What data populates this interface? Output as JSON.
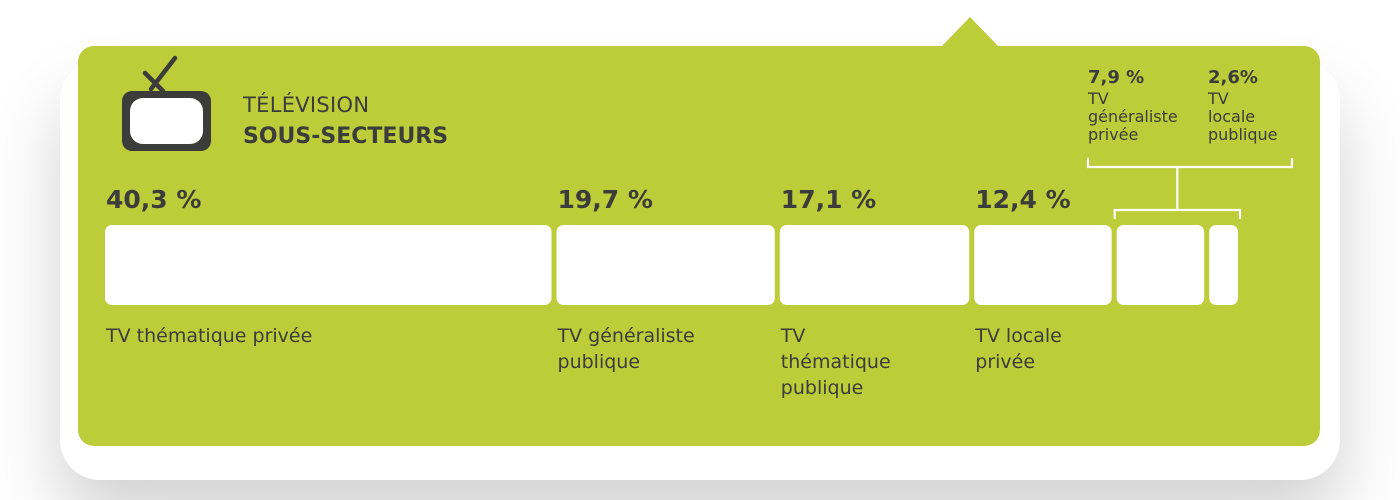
{
  "header": {
    "subtitle": "TÉLÉVISION",
    "title": "SOUS-SECTEURS"
  },
  "icon": "tv-icon",
  "colors": {
    "panel": "#bdcd3a",
    "bar": "#ffffff",
    "text": "#3c3c3b"
  },
  "chart_data": {
    "type": "bar",
    "orientation": "horizontal-stacked",
    "title": "",
    "xlabel": "",
    "ylabel": "",
    "categories": [
      "TV thématique privée",
      "TV généraliste publique",
      "TV thématique publique",
      "TV locale privée",
      "TV généraliste privée",
      "TV locale publique"
    ],
    "values": [
      40.3,
      19.7,
      17.1,
      12.4,
      7.9,
      2.6
    ],
    "value_labels": [
      "40,3 %",
      "19,7 %",
      "17,1 %",
      "12,4 %",
      "7,9 %",
      "2,6%"
    ],
    "category_lines": [
      [
        "TV thématique privée"
      ],
      [
        "TV généraliste",
        "publique"
      ],
      [
        "TV",
        "thématique",
        "publique"
      ],
      [
        "TV locale",
        "privée"
      ],
      [
        "TV",
        "généraliste",
        "privée"
      ],
      [
        "TV",
        "locale",
        "publique"
      ]
    ],
    "total": 100
  }
}
